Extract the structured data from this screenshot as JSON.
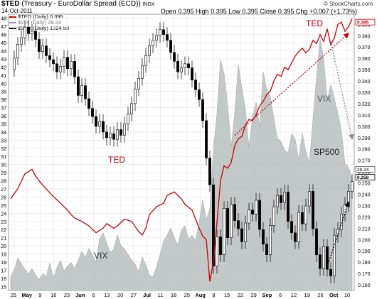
{
  "header": {
    "symbol": "$TED",
    "description": "(Treasury - EuroDollar Spread (ECD))",
    "exchange": "INDX",
    "date": "14-Oct-2011",
    "credit": "© StockCharts.com",
    "open_label": "Open",
    "open": "0.395",
    "high_label": "High",
    "high": "0.395",
    "low_label": "Low",
    "low": "0.395",
    "close_label": "Close",
    "close": "0.395",
    "chg_label": "Chg",
    "chg": "+0.007 (+1.73%)"
  },
  "legend": [
    {
      "label": "$TED (Daily) 0.395",
      "color": "#cc0000"
    },
    {
      "label": "$VIX (Daily) 28.24",
      "color": "#999999"
    },
    {
      "label": "$SPX (Daily) 1224.58",
      "color": "#000000"
    }
  ],
  "annotations": {
    "ted_upper": "TED",
    "ted_lower": "TED",
    "vix_upper": "VIX",
    "vix_lower": "VIX",
    "sp500": "SP500"
  },
  "chart_data": {
    "type": "line",
    "x_tick_labels": [
      "25",
      "May",
      "9",
      "16",
      "23",
      "Jun",
      "6",
      "13",
      "20",
      "27",
      "Jul",
      "11",
      "18",
      "25",
      "Aug",
      "8",
      "15",
      "22",
      "29",
      "Sep",
      "6",
      "12",
      "19",
      "26",
      "Oct",
      "10"
    ],
    "left_axis_labels": [
      "15",
      "16",
      "17",
      "18",
      "19",
      "20",
      "21",
      "22",
      "23",
      "24",
      "25",
      "26",
      "27",
      "28",
      "29",
      "30",
      "31",
      "32",
      "33",
      "34",
      "35",
      "36",
      "37",
      "38",
      "39",
      "40",
      "41",
      "42",
      "43",
      "44",
      "45",
      "46",
      "47",
      "48"
    ],
    "right_axis_labels": [
      "0.160",
      "0.170",
      "0.180",
      "0.190",
      "0.200",
      "0.210",
      "0.220",
      "0.230",
      "0.240",
      "0.250",
      "0.260",
      "0.270",
      "0.280",
      "0.290",
      "0.300",
      "0.310",
      "0.320",
      "0.330",
      "0.340",
      "0.350",
      "0.360",
      "0.370",
      "0.380",
      "0.390"
    ],
    "right_axis_badges": [
      "0.395",
      "28.24",
      "0.258"
    ],
    "left_ylim": [
      14.5,
      48.5
    ],
    "right_ylim": [
      0.155,
      0.399
    ],
    "grid": true,
    "series": [
      {
        "name": "$TED (Daily) 0.395",
        "color": "#cc0000",
        "axis": "right",
        "points": [
          [
            0,
            0.236
          ],
          [
            2,
            0.245
          ],
          [
            4,
            0.258
          ],
          [
            6,
            0.262
          ],
          [
            7,
            0.256
          ],
          [
            9,
            0.248
          ],
          [
            12,
            0.238
          ],
          [
            14,
            0.232
          ],
          [
            16,
            0.226
          ],
          [
            17,
            0.222
          ],
          [
            18,
            0.219
          ],
          [
            20,
            0.216
          ],
          [
            22,
            0.212
          ],
          [
            24,
            0.206
          ],
          [
            26,
            0.21
          ],
          [
            27,
            0.214
          ],
          [
            29,
            0.21
          ],
          [
            30,
            0.212
          ],
          [
            32,
            0.218
          ],
          [
            34,
            0.216
          ],
          [
            36,
            0.207
          ],
          [
            37,
            0.204
          ],
          [
            38,
            0.21
          ],
          [
            39,
            0.222
          ],
          [
            41,
            0.229
          ],
          [
            43,
            0.232
          ],
          [
            44,
            0.239
          ],
          [
            46,
            0.242
          ],
          [
            48,
            0.236
          ],
          [
            49,
            0.231
          ],
          [
            51,
            0.226
          ],
          [
            52,
            0.218
          ],
          [
            53,
            0.21
          ],
          [
            54,
            0.203
          ],
          [
            55,
            0.2
          ],
          [
            56,
            0.163
          ],
          [
            57,
            0.18
          ],
          [
            58,
            0.215
          ],
          [
            59,
            0.252
          ],
          [
            60,
            0.265
          ],
          [
            61,
            0.263
          ],
          [
            62,
            0.268
          ],
          [
            63,
            0.283
          ],
          [
            64,
            0.289
          ],
          [
            65,
            0.291
          ],
          [
            66,
            0.301
          ],
          [
            67,
            0.306
          ],
          [
            68,
            0.305
          ],
          [
            69,
            0.31
          ],
          [
            70,
            0.318
          ],
          [
            71,
            0.322
          ],
          [
            72,
            0.328
          ],
          [
            73,
            0.331
          ],
          [
            74,
            0.34
          ],
          [
            75,
            0.346
          ],
          [
            76,
            0.344
          ],
          [
            77,
            0.352
          ],
          [
            78,
            0.35
          ],
          [
            79,
            0.356
          ],
          [
            80,
            0.362
          ],
          [
            81,
            0.366
          ],
          [
            82,
            0.369
          ],
          [
            83,
            0.365
          ],
          [
            84,
            0.368
          ],
          [
            85,
            0.376
          ],
          [
            86,
            0.373
          ],
          [
            87,
            0.381
          ],
          [
            88,
            0.375
          ],
          [
            89,
            0.386
          ],
          [
            90,
            0.372
          ],
          [
            91,
            0.378
          ],
          [
            92,
            0.39
          ],
          [
            93,
            0.392
          ],
          [
            94,
            0.384
          ],
          [
            95,
            0.388
          ],
          [
            96,
            0.395
          ]
        ]
      },
      {
        "name": "$VIX (Daily) 28.24",
        "color": "#999999",
        "axis": "left",
        "type": "area",
        "points": [
          [
            0,
            16.2
          ],
          [
            1,
            17.0
          ],
          [
            2,
            18.5
          ],
          [
            3,
            17.8
          ],
          [
            4,
            17.1
          ],
          [
            5,
            16.5
          ],
          [
            6,
            17.2
          ],
          [
            7,
            16.4
          ],
          [
            8,
            15.8
          ],
          [
            9,
            16.6
          ],
          [
            10,
            16.2
          ],
          [
            11,
            17.9
          ],
          [
            12,
            16.0
          ],
          [
            13,
            17.3
          ],
          [
            14,
            18.2
          ],
          [
            15,
            16.9
          ],
          [
            16,
            17.5
          ],
          [
            17,
            17.9
          ],
          [
            18,
            17.2
          ],
          [
            19,
            18.2
          ],
          [
            20,
            19.3
          ],
          [
            21,
            18.6
          ],
          [
            22,
            19.7
          ],
          [
            23,
            18.8
          ],
          [
            24,
            18.0
          ],
          [
            25,
            20.8
          ],
          [
            26,
            21.6
          ],
          [
            27,
            20.3
          ],
          [
            28,
            19.2
          ],
          [
            29,
            19.6
          ],
          [
            30,
            21.4
          ],
          [
            31,
            20.0
          ],
          [
            32,
            19.6
          ],
          [
            33,
            18.9
          ],
          [
            34,
            18.3
          ],
          [
            35,
            17.7
          ],
          [
            36,
            16.8
          ],
          [
            37,
            18.6
          ],
          [
            38,
            17.6
          ],
          [
            39,
            16.4
          ],
          [
            40,
            16.1
          ],
          [
            41,
            17.4
          ],
          [
            42,
            18.9
          ],
          [
            43,
            20.6
          ],
          [
            44,
            21.3
          ],
          [
            45,
            22.2
          ],
          [
            46,
            21.0
          ],
          [
            47,
            20.1
          ],
          [
            48,
            21.9
          ],
          [
            49,
            22.5
          ],
          [
            50,
            20.8
          ],
          [
            51,
            21.3
          ],
          [
            52,
            20.6
          ],
          [
            53,
            22.9
          ],
          [
            54,
            25.7
          ],
          [
            55,
            23.2
          ],
          [
            56,
            24.5
          ],
          [
            57,
            31.7
          ],
          [
            58,
            36.2
          ],
          [
            59,
            42.9
          ],
          [
            60,
            41.2
          ],
          [
            61,
            37.3
          ],
          [
            62,
            32.2
          ],
          [
            63,
            36.3
          ],
          [
            64,
            42.3
          ],
          [
            65,
            39.4
          ],
          [
            66,
            36.8
          ],
          [
            67,
            32.1
          ],
          [
            68,
            35.8
          ],
          [
            69,
            37.7
          ],
          [
            70,
            34.6
          ],
          [
            71,
            41.4
          ],
          [
            72,
            39.2
          ],
          [
            73,
            38.4
          ],
          [
            74,
            35.7
          ],
          [
            75,
            33.2
          ],
          [
            76,
            32.8
          ],
          [
            77,
            31.8
          ],
          [
            78,
            31.4
          ],
          [
            79,
            33.8
          ],
          [
            80,
            33.1
          ],
          [
            81,
            30.6
          ],
          [
            82,
            33.9
          ],
          [
            83,
            31.5
          ],
          [
            84,
            30.2
          ],
          [
            85,
            35.6
          ],
          [
            86,
            40.9
          ],
          [
            87,
            45.4
          ],
          [
            88,
            43.1
          ],
          [
            89,
            37.9
          ],
          [
            90,
            39.8
          ],
          [
            91,
            38.2
          ],
          [
            92,
            36.3
          ],
          [
            93,
            34.1
          ],
          [
            94,
            30.1
          ],
          [
            95,
            29.7
          ],
          [
            96,
            28.24
          ]
        ]
      },
      {
        "name": "$SPX (Daily) 1224.58",
        "color": "#000000",
        "axis": "left",
        "type": "candlestick",
        "points": [
          [
            0,
            41.7
          ],
          [
            1,
            43.1
          ],
          [
            2,
            44.8
          ],
          [
            3,
            45.6
          ],
          [
            4,
            46.9
          ],
          [
            5,
            46.1
          ],
          [
            6,
            46.4
          ],
          [
            7,
            45.4
          ],
          [
            8,
            43.9
          ],
          [
            9,
            44.6
          ],
          [
            10,
            43.4
          ],
          [
            11,
            42.9
          ],
          [
            12,
            42.4
          ],
          [
            13,
            41.4
          ],
          [
            14,
            42.1
          ],
          [
            15,
            43.2
          ],
          [
            16,
            41.8
          ],
          [
            17,
            42.7
          ],
          [
            18,
            40.8
          ],
          [
            19,
            38.5
          ],
          [
            20,
            39.7
          ],
          [
            21,
            38.1
          ],
          [
            22,
            36.9
          ],
          [
            23,
            35.9
          ],
          [
            24,
            34.7
          ],
          [
            25,
            35.3
          ],
          [
            26,
            34.0
          ],
          [
            27,
            33.3
          ],
          [
            28,
            33.8
          ],
          [
            29,
            33.1
          ],
          [
            30,
            34.3
          ],
          [
            31,
            33.6
          ],
          [
            32,
            35.0
          ],
          [
            33,
            36.2
          ],
          [
            34,
            37.5
          ],
          [
            35,
            39.3
          ],
          [
            36,
            40.6
          ],
          [
            37,
            42.2
          ],
          [
            38,
            43.4
          ],
          [
            39,
            44.6
          ],
          [
            40,
            45.3
          ],
          [
            41,
            45.9
          ],
          [
            42,
            46.6
          ],
          [
            43,
            46.0
          ],
          [
            44,
            45.3
          ],
          [
            45,
            43.8
          ],
          [
            46,
            42.7
          ],
          [
            47,
            41.4
          ],
          [
            48,
            41.9
          ],
          [
            49,
            42.4
          ],
          [
            50,
            41.9
          ],
          [
            51,
            40.4
          ],
          [
            52,
            39.2
          ],
          [
            53,
            38.0
          ],
          [
            54,
            35.4
          ],
          [
            55,
            30.8
          ],
          [
            56,
            27.5
          ],
          [
            57,
            17.5
          ],
          [
            58,
            21.1
          ],
          [
            59,
            18.9
          ],
          [
            60,
            24.6
          ],
          [
            61,
            21.0
          ],
          [
            62,
            25.1
          ],
          [
            63,
            23.1
          ],
          [
            64,
            22.1
          ],
          [
            65,
            20.5
          ],
          [
            66,
            22.8
          ],
          [
            67,
            24.4
          ],
          [
            68,
            23.9
          ],
          [
            69,
            25.6
          ],
          [
            70,
            22.0
          ],
          [
            71,
            20.2
          ],
          [
            72,
            18.9
          ],
          [
            73,
            22.5
          ],
          [
            74,
            24.8
          ],
          [
            75,
            26.2
          ],
          [
            76,
            25.3
          ],
          [
            77,
            26.6
          ],
          [
            78,
            23.0
          ],
          [
            79,
            21.6
          ],
          [
            80,
            20.5
          ],
          [
            81,
            24.1
          ],
          [
            82,
            22.7
          ],
          [
            83,
            24.9
          ],
          [
            84,
            26.7
          ],
          [
            85,
            22.1
          ],
          [
            86,
            18.9
          ],
          [
            87,
            17.2
          ],
          [
            88,
            19.9
          ],
          [
            89,
            17.1
          ],
          [
            90,
            16.3
          ],
          [
            91,
            21.3
          ],
          [
            92,
            22.0
          ],
          [
            93,
            23.9
          ],
          [
            94,
            25.1
          ],
          [
            95,
            26.7
          ],
          [
            96,
            27.9
          ]
        ]
      }
    ],
    "arrows": [
      {
        "style": "dotted",
        "color": "#cc0000",
        "from": [
          63,
          0.292
        ],
        "to": [
          95,
          0.382
        ]
      },
      {
        "style": "dotted",
        "color": "#888888",
        "from": [
          90,
          0.375
        ],
        "to": [
          96,
          0.289
        ]
      },
      {
        "style": "dotted",
        "color": "#000000",
        "from": [
          89,
          0.176
        ],
        "to": [
          95,
          0.233
        ]
      }
    ]
  }
}
